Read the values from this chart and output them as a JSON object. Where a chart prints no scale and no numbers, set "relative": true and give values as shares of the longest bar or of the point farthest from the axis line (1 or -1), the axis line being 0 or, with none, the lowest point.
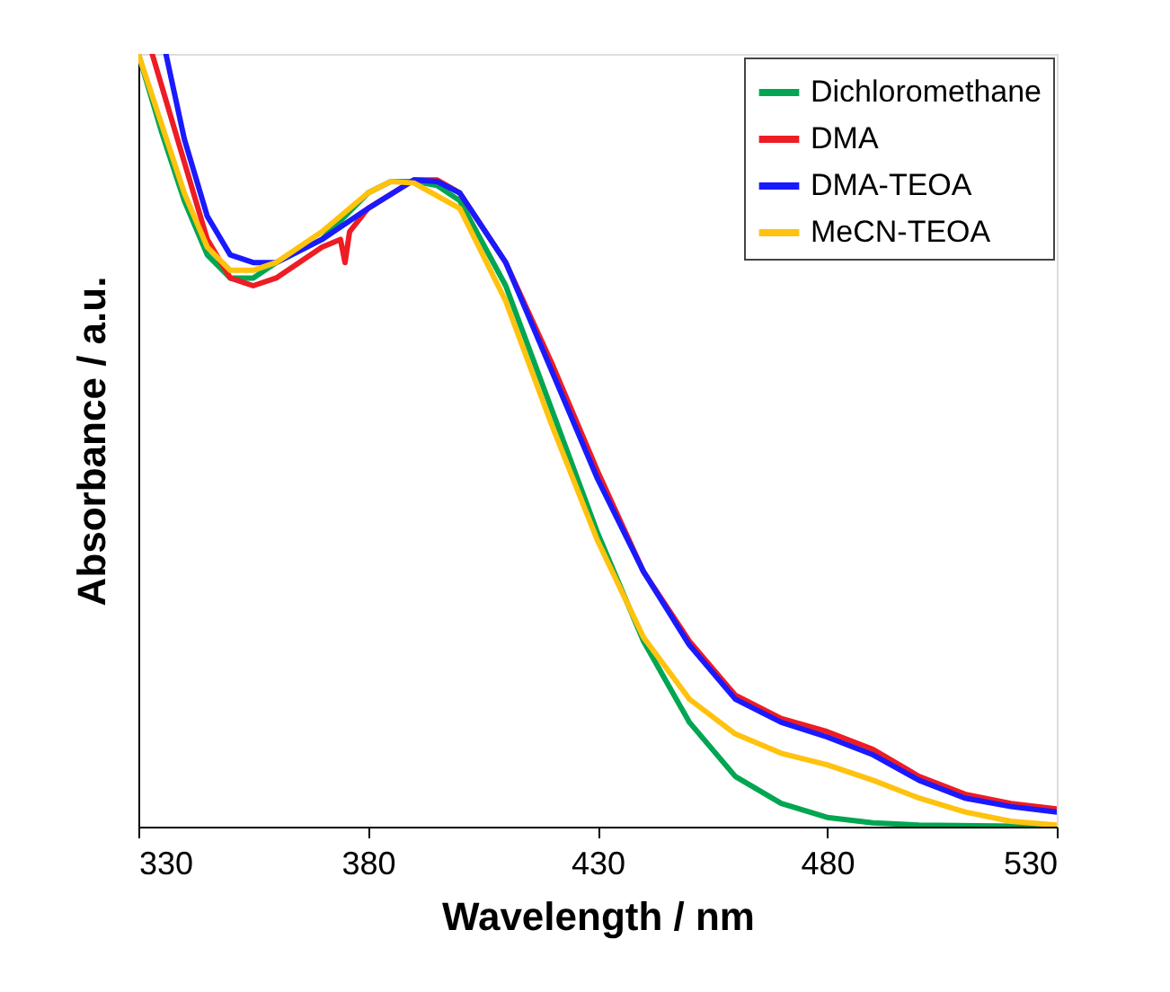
{
  "chart_data": {
    "type": "line",
    "xlabel": "Wavelength / nm",
    "ylabel": "Absorbance / a.u.",
    "relative": true,
    "xlim": [
      330,
      530
    ],
    "xticks": [
      330,
      380,
      430,
      480,
      530
    ],
    "grid": false,
    "legend": "top right",
    "marker": "none",
    "line_style": "solid",
    "series": [
      {
        "name": "Dichloromethane",
        "color": "#00a651",
        "x": [
          330,
          335,
          340,
          345,
          350,
          355,
          360,
          370,
          380,
          385,
          390,
          395,
          400,
          410,
          420,
          430,
          440,
          450,
          460,
          470,
          480,
          490,
          500,
          530
        ],
        "values": [
          1.0,
          0.9,
          0.81,
          0.74,
          0.71,
          0.71,
          0.73,
          0.76,
          0.82,
          0.835,
          0.835,
          0.83,
          0.81,
          0.7,
          0.54,
          0.38,
          0.24,
          0.135,
          0.065,
          0.03,
          0.012,
          0.005,
          0.002,
          0.0
        ]
      },
      {
        "name": "DMA",
        "color": "#ee1c24",
        "x": [
          333,
          335,
          340,
          345,
          350,
          355,
          360,
          370,
          374,
          375,
          376,
          380,
          390,
          395,
          400,
          410,
          420,
          430,
          440,
          450,
          460,
          470,
          480,
          490,
          500,
          510,
          520,
          530
        ],
        "values": [
          1.0,
          0.96,
          0.86,
          0.76,
          0.71,
          0.7,
          0.71,
          0.75,
          0.76,
          0.73,
          0.77,
          0.8,
          0.837,
          0.837,
          0.82,
          0.73,
          0.6,
          0.46,
          0.33,
          0.24,
          0.17,
          0.14,
          0.123,
          0.1,
          0.065,
          0.042,
          0.03,
          0.023
        ]
      },
      {
        "name": "DMA-TEOA",
        "color": "#1a1aff",
        "x": [
          336,
          340,
          345,
          350,
          355,
          360,
          370,
          380,
          390,
          395,
          400,
          410,
          420,
          430,
          440,
          450,
          460,
          470,
          480,
          490,
          500,
          510,
          520,
          530
        ],
        "values": [
          1.0,
          0.89,
          0.79,
          0.74,
          0.73,
          0.73,
          0.76,
          0.8,
          0.837,
          0.835,
          0.82,
          0.73,
          0.59,
          0.45,
          0.33,
          0.235,
          0.165,
          0.135,
          0.116,
          0.093,
          0.06,
          0.037,
          0.026,
          0.019
        ]
      },
      {
        "name": "MeCN-TEOA",
        "color": "#ffc20e",
        "x": [
          330,
          335,
          340,
          345,
          350,
          355,
          360,
          370,
          380,
          385,
          390,
          400,
          410,
          420,
          430,
          440,
          450,
          460,
          470,
          480,
          490,
          500,
          510,
          520,
          530
        ],
        "values": [
          1.0,
          0.91,
          0.82,
          0.75,
          0.72,
          0.72,
          0.73,
          0.77,
          0.82,
          0.835,
          0.833,
          0.8,
          0.68,
          0.52,
          0.37,
          0.245,
          0.165,
          0.12,
          0.095,
          0.08,
          0.06,
          0.037,
          0.019,
          0.007,
          0.002
        ]
      }
    ]
  }
}
